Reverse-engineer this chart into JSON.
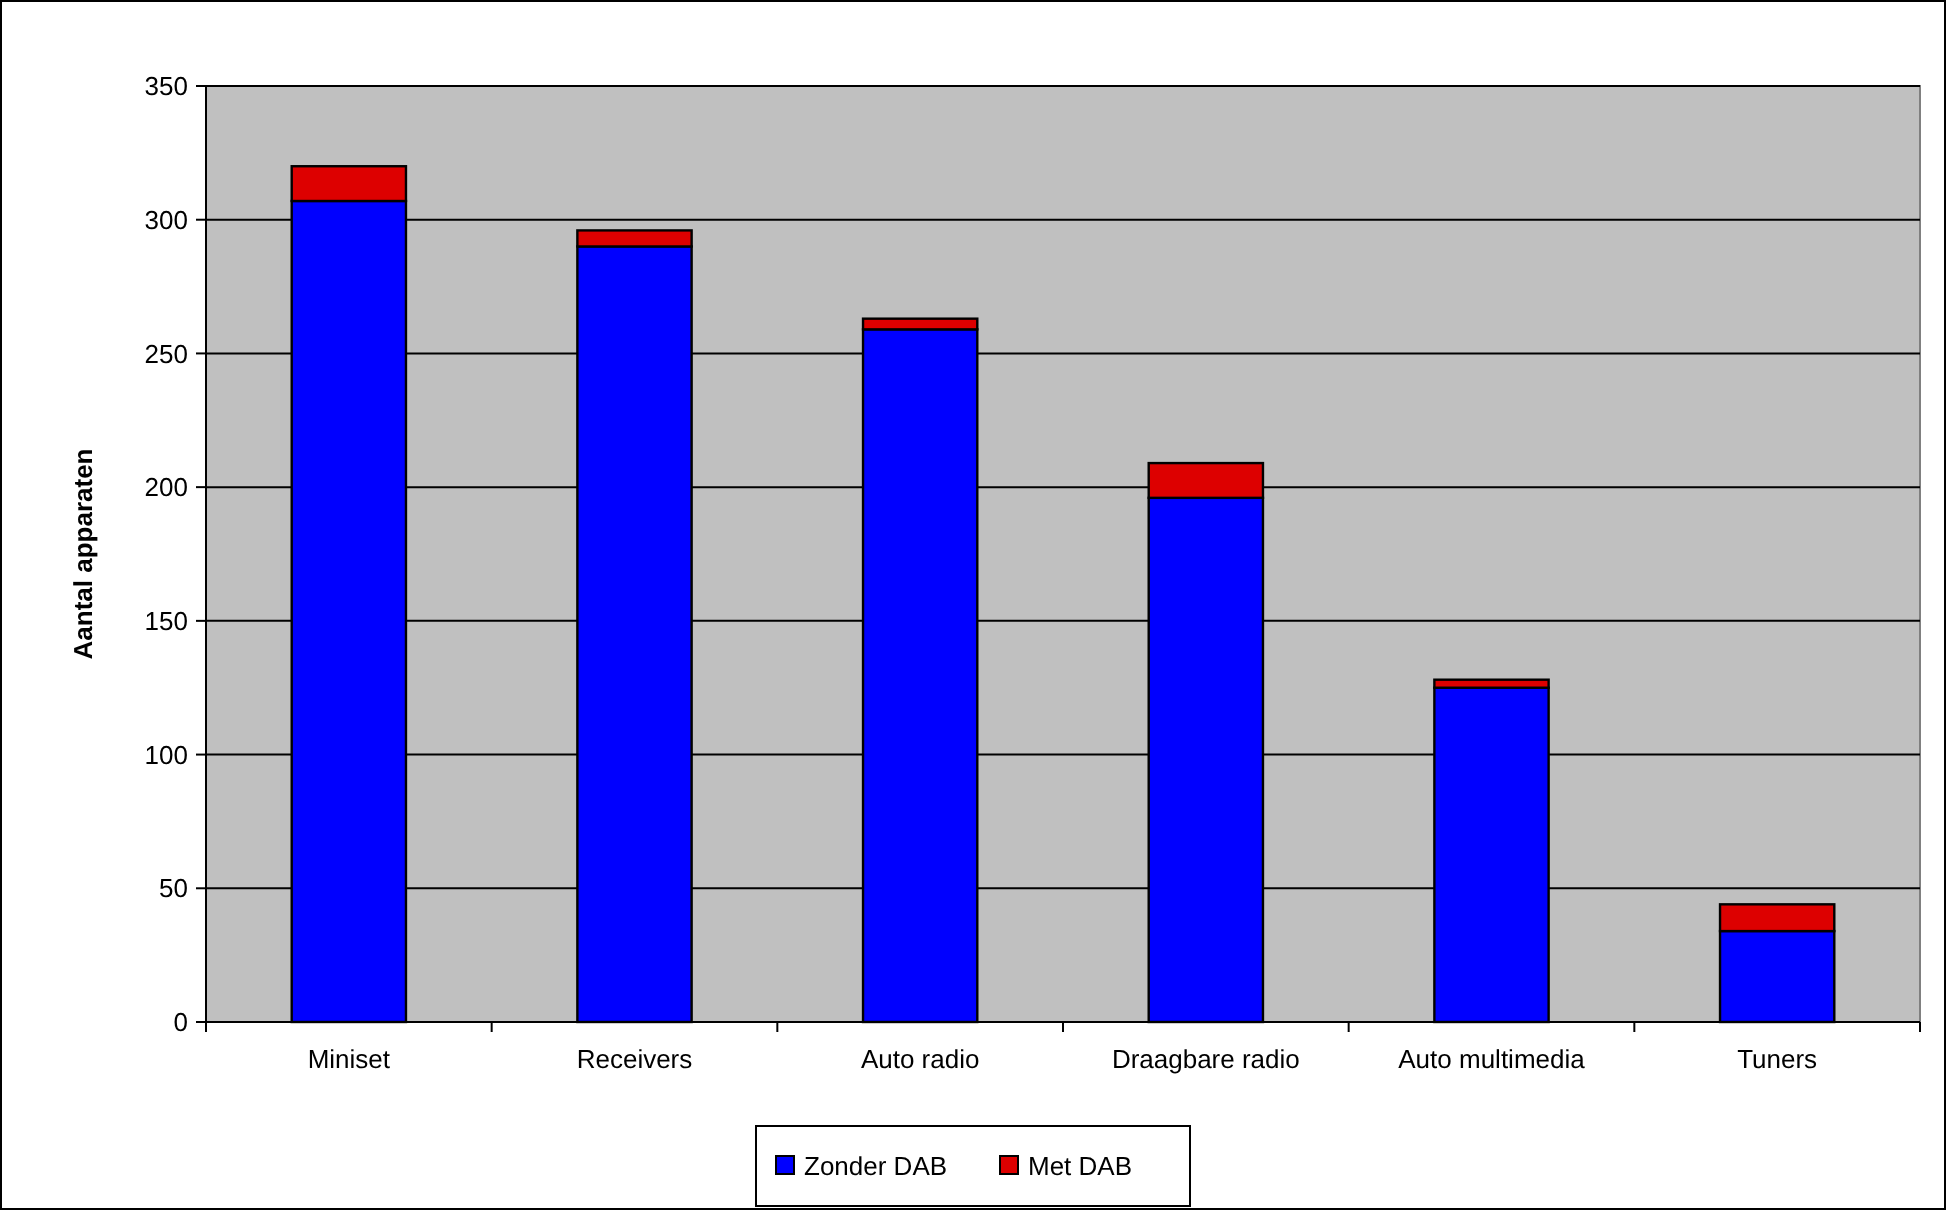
{
  "chart_data": {
    "type": "bar",
    "stacked": true,
    "ylabel": "Aantal apparaten",
    "categories": [
      "Miniset",
      "Receivers",
      "Auto radio",
      "Draagbare radio",
      "Auto multimedia",
      "Tuners"
    ],
    "series": [
      {
        "name": "Zonder DAB",
        "color": "#0000ff",
        "values": [
          307,
          290,
          259,
          196,
          125,
          34
        ]
      },
      {
        "name": "Met DAB",
        "color": "#dd0000",
        "values": [
          13,
          6,
          4,
          13,
          3,
          10
        ]
      }
    ],
    "ylim": [
      0,
      350
    ],
    "yticks": [
      0,
      50,
      100,
      150,
      200,
      250,
      300,
      350
    ],
    "grid": "y",
    "legend": "bottom"
  }
}
